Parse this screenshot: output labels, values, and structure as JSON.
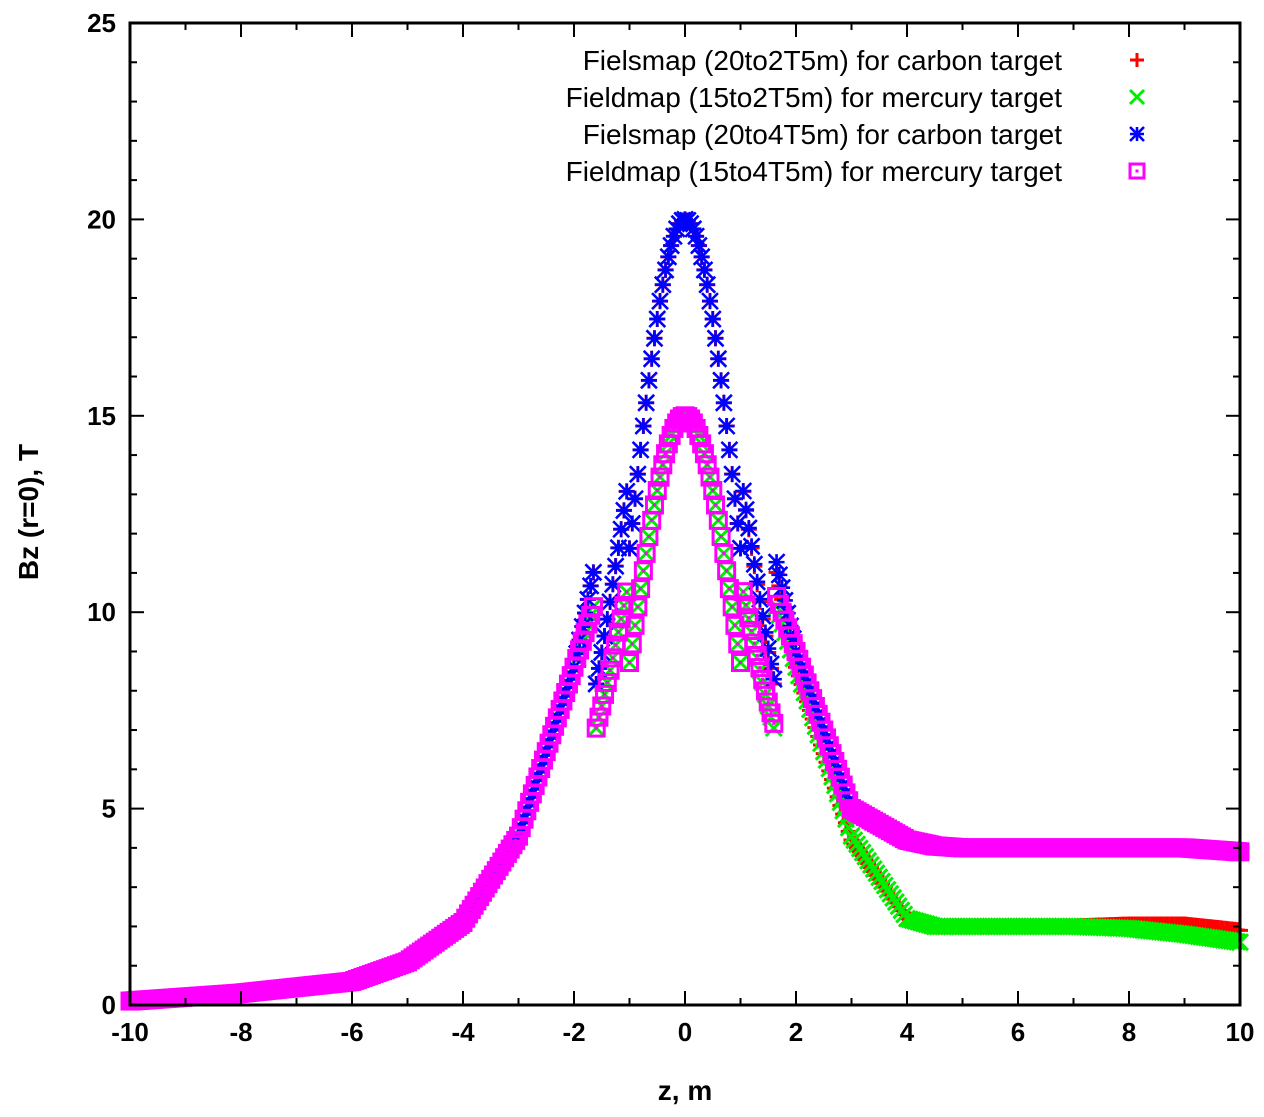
{
  "chart_data": {
    "type": "scatter",
    "title": "",
    "xlabel": "z, m",
    "ylabel": "Bz (r=0), T",
    "xlim": [
      -10,
      10
    ],
    "ylim": [
      0,
      25
    ],
    "x_ticks": [
      "-10",
      "-8",
      "-6",
      "-4",
      "-2",
      "0",
      "2",
      "4",
      "6",
      "8",
      "10"
    ],
    "y_ticks": [
      "0",
      "5",
      "10",
      "15",
      "20",
      "25"
    ],
    "grid": false,
    "legend_position": "top-right",
    "series": [
      {
        "name": "Fielsmap (20to2T5m) for carbon target",
        "marker": "plus",
        "color": "#ff0000",
        "peak": 20,
        "x": [
          -10,
          -8,
          -6,
          -5,
          -4,
          -3,
          -2,
          -1,
          -0.5,
          0,
          0.5,
          1,
          2,
          3,
          4,
          4.5,
          5,
          6,
          7,
          8,
          9,
          10
        ],
        "y": [
          0.1,
          0.3,
          0.6,
          1.1,
          2.1,
          4.3,
          8.6,
          15.5,
          18.9,
          20.0,
          18.9,
          15.5,
          8.6,
          4.2,
          2.2,
          2.0,
          2.0,
          2.0,
          2.0,
          2.05,
          2.05,
          1.9
        ]
      },
      {
        "name": "Fieldmap (15to2T5m) for mercury target",
        "marker": "cross",
        "color": "#00ee00",
        "peak": 15,
        "x": [
          -10,
          -8,
          -6,
          -5,
          -4,
          -3,
          -2,
          -1,
          -0.5,
          0,
          0.5,
          1,
          2,
          3,
          4,
          4.5,
          5,
          6,
          7,
          8,
          9,
          10
        ],
        "y": [
          0.1,
          0.3,
          0.6,
          1.1,
          2.1,
          4.3,
          8.6,
          13.0,
          14.5,
          15.0,
          14.5,
          13.0,
          8.6,
          4.3,
          2.2,
          2.0,
          2.0,
          2.0,
          2.0,
          1.95,
          1.8,
          1.6
        ]
      },
      {
        "name": "Fielsmap (20to4T5m) for carbon target",
        "marker": "star",
        "color": "#0000ff",
        "peak": 20,
        "x": [
          -10,
          -8,
          -6,
          -5,
          -4,
          -3,
          -2,
          -1,
          -0.5,
          0,
          0.5,
          1,
          2,
          3,
          4,
          4.5,
          5,
          6,
          7,
          8,
          9,
          10
        ],
        "y": [
          0.1,
          0.3,
          0.6,
          1.1,
          2.1,
          4.3,
          8.6,
          15.5,
          18.9,
          20.0,
          18.9,
          15.5,
          9.0,
          5.0,
          4.2,
          4.05,
          4.0,
          4.0,
          4.0,
          4.0,
          4.0,
          3.9
        ]
      },
      {
        "name": "Fieldmap (15to4T5m) for mercury target",
        "marker": "square-dot",
        "color": "#ff00ff",
        "peak": 15,
        "x": [
          -10,
          -8,
          -6,
          -5,
          -4,
          -3,
          -2,
          -1,
          -0.5,
          0,
          0.5,
          1,
          2,
          3,
          4,
          4.5,
          5,
          6,
          7,
          8,
          9,
          10
        ],
        "y": [
          0.1,
          0.3,
          0.6,
          1.1,
          2.1,
          4.3,
          8.6,
          13.0,
          14.5,
          15.0,
          14.5,
          13.0,
          9.0,
          5.0,
          4.2,
          4.05,
          4.0,
          4.0,
          4.0,
          4.0,
          4.0,
          3.9
        ]
      }
    ]
  }
}
